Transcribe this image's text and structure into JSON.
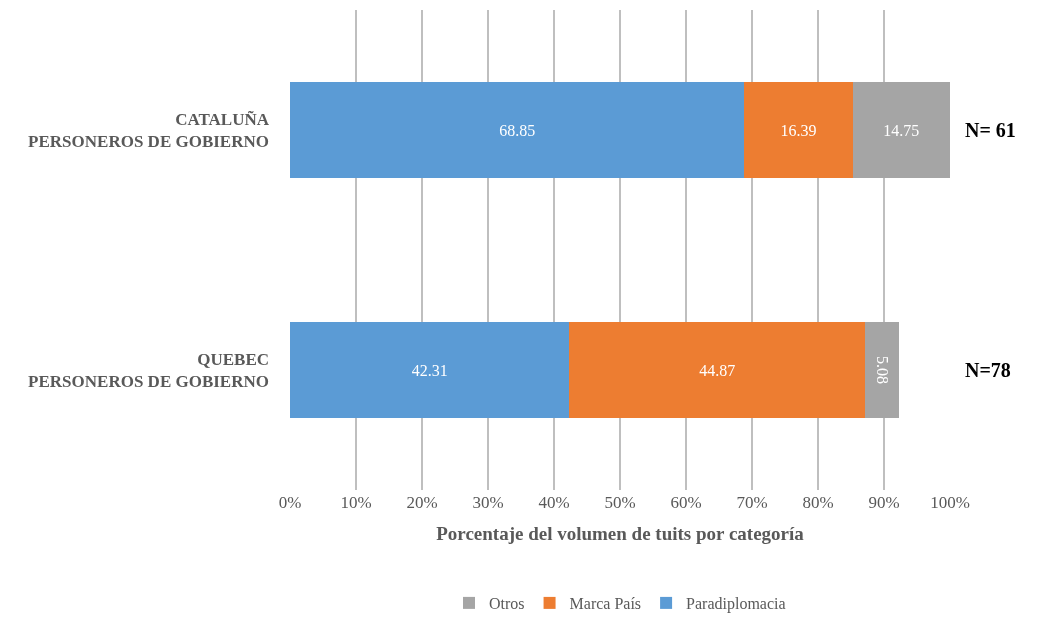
{
  "chart_data": {
    "type": "bar",
    "orientation": "horizontal",
    "stacked": true,
    "xlabel": "Porcentaje del volumen de tuits por categoría",
    "categories": [
      "CATALUÑA\nPERSONEROS DE GOBIERNO",
      "QUEBEC\nPERSONEROS DE GOBIERNO"
    ],
    "series": [
      {
        "name": "Paradiplomacia",
        "color": "#5b9bd5",
        "values": [
          68.85,
          42.31
        ]
      },
      {
        "name": "Marca País",
        "color": "#ed7d31",
        "values": [
          16.39,
          44.87
        ]
      },
      {
        "name": "Otros",
        "color": "#a5a5a5",
        "values": [
          14.75,
          5.08
        ]
      }
    ],
    "data_labels": true,
    "xlim": [
      0,
      100
    ],
    "xticks": [
      {
        "value": 0,
        "label": "0%"
      },
      {
        "value": 10,
        "label": "10%"
      },
      {
        "value": 20,
        "label": "20%"
      },
      {
        "value": 30,
        "label": "30%"
      },
      {
        "value": 40,
        "label": "40%"
      },
      {
        "value": 50,
        "label": "50%"
      },
      {
        "value": 60,
        "label": "60%"
      },
      {
        "value": 70,
        "label": "70%"
      },
      {
        "value": 80,
        "label": "80%"
      },
      {
        "value": 90,
        "label": "90%"
      },
      {
        "value": 100,
        "label": "100%"
      }
    ],
    "grid": "x",
    "legend": "bottom",
    "annotations": [
      "N= 61",
      "N=78"
    ]
  }
}
